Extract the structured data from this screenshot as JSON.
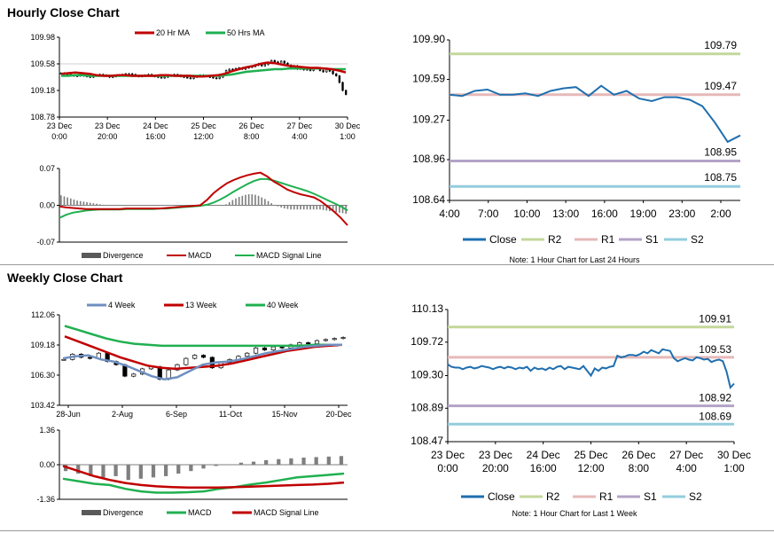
{
  "sections": {
    "hourly_title": "Hourly Close Chart",
    "weekly_title": "Weekly Close Chart"
  },
  "colors": {
    "ma20": "#c00000",
    "ma50": "#20b050",
    "close_blue": "#1f6fb0",
    "r2": "#c4d79b",
    "r1": "#e6b9b8",
    "s1": "#b3a2c7",
    "s2": "#93cddd",
    "divergence": "#7f7f7f",
    "macd_red": "#c00000",
    "signal_green": "#20b050"
  },
  "chart_data": [
    {
      "id": "hourly-price",
      "type": "candlestick",
      "title": "",
      "legend": [
        "20 Hr MA",
        "50 Hrs MA"
      ],
      "x_ticks": [
        "23 Dec\n0:00",
        "23 Dec\n20:00",
        "24 Dec\n16:00",
        "25 Dec\n12:00",
        "26 Dec\n8:00",
        "27 Dec\n4:00",
        "30 Dec\n1:00"
      ],
      "y_ticks": [
        "109.98",
        "109.58",
        "109.18",
        "108.78"
      ],
      "ylim": [
        108.78,
        109.98
      ],
      "series": [
        {
          "name": "Close",
          "values": [
            109.44,
            109.43,
            109.42,
            109.41,
            109.4,
            109.4,
            109.41,
            109.4,
            109.39,
            109.38,
            109.4,
            109.41,
            109.42,
            109.41,
            109.4,
            109.38,
            109.39,
            109.4,
            109.41,
            109.42,
            109.43,
            109.43,
            109.42,
            109.4,
            109.39,
            109.4,
            109.41,
            109.42,
            109.4,
            109.39,
            109.38,
            109.37,
            109.38,
            109.4,
            109.41,
            109.42,
            109.41,
            109.39,
            109.38,
            109.37,
            109.36,
            109.38,
            109.4,
            109.41,
            109.4,
            109.39,
            109.38,
            109.37,
            109.36,
            109.38,
            109.42,
            109.48,
            109.5,
            109.49,
            109.51,
            109.52,
            109.5,
            109.52,
            109.53,
            109.54,
            109.56,
            109.58,
            109.55,
            109.57,
            109.6,
            109.63,
            109.61,
            109.58,
            109.62,
            109.59,
            109.56,
            109.53,
            109.55,
            109.5,
            109.52,
            109.49,
            109.5,
            109.48,
            109.51,
            109.52,
            109.48,
            109.46,
            109.5,
            109.47,
            109.43,
            109.4,
            109.3,
            109.18,
            109.12
          ]
        },
        {
          "name": "20 Hr MA",
          "values": [
            109.43,
            109.44,
            109.45,
            109.44,
            109.43,
            109.41,
            109.4,
            109.4,
            109.41,
            109.41,
            109.4,
            109.4,
            109.4,
            109.4,
            109.41,
            109.41,
            109.4,
            109.4,
            109.4,
            109.39,
            109.39,
            109.4,
            109.41,
            109.43,
            109.47,
            109.5,
            109.53,
            109.55,
            109.58,
            109.6,
            109.59,
            109.57,
            109.55,
            109.54,
            109.53,
            109.52,
            109.52,
            109.51,
            109.5,
            109.48,
            109.45
          ]
        },
        {
          "name": "50 Hrs MA",
          "values": [
            109.4,
            109.4,
            109.41,
            109.41,
            109.4,
            109.4,
            109.4,
            109.4,
            109.4,
            109.4,
            109.4,
            109.4,
            109.4,
            109.4,
            109.4,
            109.4,
            109.4,
            109.4,
            109.4,
            109.4,
            109.4,
            109.4,
            109.4,
            109.41,
            109.42,
            109.44,
            109.46,
            109.47,
            109.48,
            109.49,
            109.5,
            109.5,
            109.51,
            109.51,
            109.51,
            109.51,
            109.51,
            109.51,
            109.5,
            109.5,
            109.5
          ]
        }
      ]
    },
    {
      "id": "hourly-macd",
      "type": "bar+line",
      "y_ticks": [
        "0.07",
        "0.00",
        "-0.07"
      ],
      "ylim": [
        -0.07,
        0.07
      ],
      "legend": [
        "Divergence",
        "MACD",
        "MACD Signal Line"
      ],
      "series": [
        {
          "name": "Divergence",
          "values": [
            0.019,
            0.017,
            0.015,
            0.013,
            0.011,
            0.009,
            0.008,
            0.007,
            0.006,
            0.005,
            0.004,
            0.003,
            0.002,
            0.001,
            0.0,
            0.0,
            0.0,
            0.0,
            0.0,
            0.0,
            0.0,
            0.0,
            0.0,
            0.0,
            0.0,
            0.0,
            0.0,
            0.0,
            0.0,
            0.0,
            0.0,
            0.0,
            0.0,
            0.0,
            0.0,
            0.0,
            0.0,
            0.0,
            0.0,
            0.0,
            0.0,
            0.0,
            0.0,
            0.0,
            0.0,
            0.0,
            0.0,
            0.0,
            0.0,
            0.0,
            0.0,
            0.002,
            0.006,
            0.01,
            0.013,
            0.016,
            0.018,
            0.02,
            0.021,
            0.021,
            0.02,
            0.018,
            0.015,
            0.012,
            0.008,
            0.004,
            0.001,
            -0.002,
            -0.004,
            -0.006,
            -0.007,
            -0.008,
            -0.008,
            -0.008,
            -0.008,
            -0.008,
            -0.008,
            -0.008,
            -0.008,
            -0.008,
            -0.008,
            -0.009,
            -0.01,
            -0.011,
            -0.012,
            -0.013,
            -0.014,
            -0.015,
            -0.016
          ]
        },
        {
          "name": "MACD",
          "values": [
            -0.002,
            -0.004,
            -0.005,
            -0.006,
            -0.007,
            -0.007,
            -0.007,
            -0.007,
            -0.007,
            -0.007,
            -0.006,
            -0.006,
            -0.006,
            -0.006,
            -0.006,
            -0.006,
            -0.005,
            -0.004,
            -0.003,
            -0.002,
            -0.001,
            0.0,
            0.01,
            0.023,
            0.033,
            0.042,
            0.048,
            0.053,
            0.057,
            0.06,
            0.062,
            0.055,
            0.045,
            0.038,
            0.03,
            0.025,
            0.021,
            0.018,
            0.015,
            0.008,
            -0.002,
            -0.012,
            -0.024,
            -0.038
          ]
        },
        {
          "name": "MACD Signal Line",
          "values": [
            -0.024,
            -0.018,
            -0.014,
            -0.012,
            -0.01,
            -0.009,
            -0.008,
            -0.008,
            -0.008,
            -0.008,
            -0.007,
            -0.007,
            -0.007,
            -0.007,
            -0.007,
            -0.006,
            -0.006,
            -0.005,
            -0.004,
            -0.003,
            -0.002,
            -0.001,
            0.001,
            0.005,
            0.011,
            0.018,
            0.026,
            0.033,
            0.04,
            0.046,
            0.05,
            0.05,
            0.047,
            0.043,
            0.039,
            0.035,
            0.031,
            0.027,
            0.022,
            0.016,
            0.01,
            0.004,
            -0.002,
            -0.01
          ]
        }
      ]
    },
    {
      "id": "hourly-24h",
      "type": "line",
      "x_ticks": [
        "4:00",
        "7:00",
        "10:00",
        "13:00",
        "16:00",
        "19:00",
        "23:00",
        "2:00"
      ],
      "y_ticks": [
        "109.90",
        "109.59",
        "109.27",
        "108.96",
        "108.64"
      ],
      "ylim": [
        108.64,
        109.9
      ],
      "levels": [
        {
          "name": "R2",
          "value": 109.79,
          "label": "109.79"
        },
        {
          "name": "R1",
          "value": 109.47,
          "label": "109.47"
        },
        {
          "name": "S1",
          "value": 108.95,
          "label": "108.95"
        },
        {
          "name": "S2",
          "value": 108.75,
          "label": "108.75"
        }
      ],
      "series": [
        {
          "name": "Close",
          "values": [
            109.47,
            109.46,
            109.5,
            109.51,
            109.47,
            109.47,
            109.48,
            109.46,
            109.5,
            109.52,
            109.53,
            109.46,
            109.54,
            109.47,
            109.5,
            109.44,
            109.42,
            109.45,
            109.45,
            109.43,
            109.38,
            109.25,
            109.1,
            109.15
          ]
        }
      ],
      "legend": [
        "Close",
        "R2",
        "R1",
        "S1",
        "S2"
      ],
      "note": "Note: 1 Hour Chart for Last 24 Hours"
    },
    {
      "id": "weekly-price",
      "type": "candlestick",
      "legend": [
        "4 Week",
        "13 Week",
        "40 Week"
      ],
      "x_ticks": [
        "28-Jun",
        "2-Aug",
        "6-Sep",
        "11-Oct",
        "15-Nov",
        "20-Dec"
      ],
      "y_ticks": [
        "112.06",
        "109.18",
        "106.30",
        "103.42"
      ],
      "ylim": [
        103.42,
        112.06
      ],
      "series": [
        {
          "name": "Close",
          "values": [
            107.8,
            108.3,
            108.0,
            107.9,
            108.4,
            107.6,
            107.3,
            106.2,
            106.4,
            106.9,
            107.1,
            105.9,
            106.8,
            107.3,
            107.9,
            108.2,
            108.0,
            107.0,
            107.5,
            107.8,
            108.1,
            108.4,
            108.9,
            108.7,
            109.0,
            108.9,
            109.2,
            109.4,
            109.3,
            109.6,
            109.7,
            109.8,
            109.9
          ]
        },
        {
          "name": "4 Week",
          "values": [
            107.9,
            108.1,
            108.2,
            107.8,
            107.6,
            107.2,
            106.7,
            106.2,
            105.9,
            106.1,
            106.7,
            107.3,
            107.5,
            107.6,
            107.8,
            108.1,
            108.4,
            108.6,
            108.8,
            109.0,
            109.1,
            109.2,
            109.2
          ]
        },
        {
          "name": "13 Week",
          "values": [
            110.0,
            109.5,
            109.0,
            108.5,
            108.0,
            107.6,
            107.2,
            107.0,
            106.9,
            107.0,
            107.1,
            107.2,
            107.4,
            107.7,
            108.0,
            108.3,
            108.6,
            108.8,
            109.0,
            109.1,
            109.2
          ]
        },
        {
          "name": "40 Week",
          "values": [
            111.0,
            110.6,
            110.2,
            109.8,
            109.5,
            109.3,
            109.2,
            109.1,
            109.1,
            109.1,
            109.1,
            109.1,
            109.1,
            109.1,
            109.1,
            109.1,
            109.1,
            109.1,
            109.2,
            109.2,
            109.2
          ]
        }
      ]
    },
    {
      "id": "weekly-macd",
      "type": "bar+line",
      "y_ticks": [
        "1.36",
        "0.00",
        "-1.36"
      ],
      "ylim": [
        -1.36,
        1.36
      ],
      "legend": [
        "Divergence",
        "MACD",
        "MACD Signal Line"
      ],
      "series": [
        {
          "name": "Divergence",
          "values": [
            -0.25,
            -0.35,
            -0.45,
            -0.5,
            -0.45,
            -0.6,
            -0.55,
            -0.5,
            -0.45,
            -0.35,
            -0.25,
            -0.15,
            -0.05,
            0.0,
            0.08,
            0.12,
            0.18,
            0.22,
            0.25,
            0.28,
            0.3,
            0.32,
            0.34
          ]
        },
        {
          "name": "MACD",
          "values": [
            -0.55,
            -0.65,
            -0.75,
            -0.8,
            -0.95,
            -1.05,
            -1.1,
            -1.1,
            -1.08,
            -1.05,
            -0.95,
            -0.88,
            -0.78,
            -0.7,
            -0.6,
            -0.5,
            -0.45,
            -0.4,
            -0.35
          ]
        },
        {
          "name": "MACD Signal Line",
          "values": [
            -0.05,
            -0.25,
            -0.45,
            -0.6,
            -0.72,
            -0.8,
            -0.85,
            -0.88,
            -0.9,
            -0.9,
            -0.9,
            -0.88,
            -0.86,
            -0.84,
            -0.82,
            -0.8,
            -0.78,
            -0.75,
            -0.7
          ]
        }
      ]
    },
    {
      "id": "weekly-1w",
      "type": "line",
      "x_ticks": [
        "23 Dec\n0:00",
        "23 Dec\n20:00",
        "24 Dec\n16:00",
        "25 Dec\n12:00",
        "26 Dec\n8:00",
        "27 Dec\n4:00",
        "30 Dec\n1:00"
      ],
      "y_ticks": [
        "110.13",
        "109.72",
        "109.30",
        "108.89",
        "108.47"
      ],
      "ylim": [
        108.47,
        110.13
      ],
      "levels": [
        {
          "name": "R2",
          "value": 109.91,
          "label": "109.91"
        },
        {
          "name": "R1",
          "value": 109.53,
          "label": "109.53"
        },
        {
          "name": "S1",
          "value": 108.92,
          "label": "108.92"
        },
        {
          "name": "S2",
          "value": 108.69,
          "label": "108.69"
        }
      ],
      "series": [
        {
          "name": "Close",
          "values": [
            109.44,
            109.41,
            109.4,
            109.4,
            109.38,
            109.4,
            109.41,
            109.39,
            109.4,
            109.42,
            109.41,
            109.4,
            109.38,
            109.4,
            109.41,
            109.39,
            109.41,
            109.4,
            109.38,
            109.4,
            109.39,
            109.41,
            109.36,
            109.4,
            109.38,
            109.39,
            109.37,
            109.4,
            109.38,
            109.41,
            109.42,
            109.38,
            109.41,
            109.4,
            109.39,
            109.38,
            109.42,
            109.36,
            109.3,
            109.39,
            109.36,
            109.4,
            109.39,
            109.41,
            109.42,
            109.55,
            109.53,
            109.54,
            109.56,
            109.56,
            109.55,
            109.57,
            109.6,
            109.58,
            109.62,
            109.6,
            109.58,
            109.63,
            109.62,
            109.61,
            109.52,
            109.48,
            109.5,
            109.52,
            109.5,
            109.49,
            109.53,
            109.52,
            109.5,
            109.51,
            109.47,
            109.49,
            109.5,
            109.48,
            109.35,
            109.15,
            109.2
          ]
        }
      ],
      "legend": [
        "Close",
        "R2",
        "R1",
        "S1",
        "S2"
      ],
      "note": "Note: 1 Hour Chart for Last 1 Week"
    }
  ]
}
